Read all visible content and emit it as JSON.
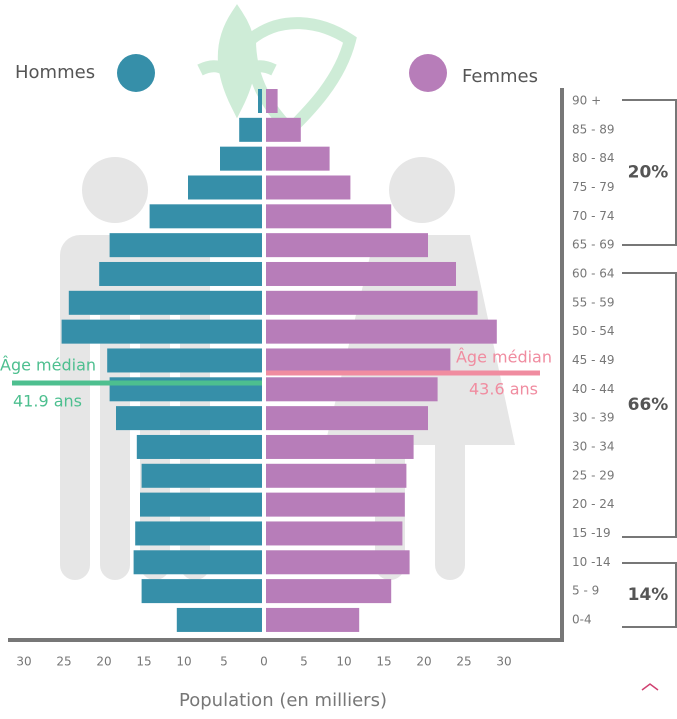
{
  "chart_data": {
    "type": "pyramid",
    "x_label": "Population (en milliers)",
    "categories": [
      "90 +",
      "85 - 89",
      "80 - 84",
      "75 - 79",
      "70 - 74",
      "65 - 69",
      "60 - 64",
      "55 - 59",
      "50 - 54",
      "45 - 49",
      "40 - 44",
      "30 - 39",
      "30 - 34",
      "25 - 29",
      "20 - 24",
      "15 -19",
      "10 -14",
      "5 - 9",
      "0-4"
    ],
    "series": [
      {
        "name": "Hommes",
        "color": "#368fa9",
        "side": "left",
        "values": [
          0.75,
          3.1,
          5.5,
          9.5,
          14.3,
          19.3,
          20.6,
          24.4,
          25.3,
          19.6,
          19.3,
          18.5,
          15.9,
          15.3,
          15.5,
          16.1,
          16.3,
          15.3,
          10.9
        ]
      },
      {
        "name": "Femmes",
        "color": "#b77db9",
        "side": "right",
        "values": [
          1.7,
          4.6,
          8.2,
          10.8,
          15.9,
          20.5,
          24.0,
          26.7,
          29.1,
          23.3,
          21.7,
          20.5,
          18.7,
          17.8,
          17.6,
          17.3,
          18.2,
          15.9,
          11.9
        ]
      }
    ],
    "xlim": [
      -32,
      37
    ],
    "xticks": [
      {
        "value": -30,
        "label": "30"
      },
      {
        "value": -25,
        "label": "25"
      },
      {
        "value": -20,
        "label": "20"
      },
      {
        "value": -15,
        "label": "15"
      },
      {
        "value": -10,
        "label": "10"
      },
      {
        "value": -5,
        "label": "5"
      },
      0,
      5,
      10,
      15,
      20,
      25,
      30
    ],
    "annotations": [
      {
        "label": "Âge médian",
        "value": "41.9 ans",
        "color": "#4dbf8f"
      },
      {
        "label": "Âge médian",
        "value": "43.6 ans",
        "color": "#f08ca0"
      }
    ],
    "brackets": [
      {
        "label": "20%"
      },
      {
        "label": "66%"
      },
      {
        "label": "14%"
      }
    ]
  }
}
